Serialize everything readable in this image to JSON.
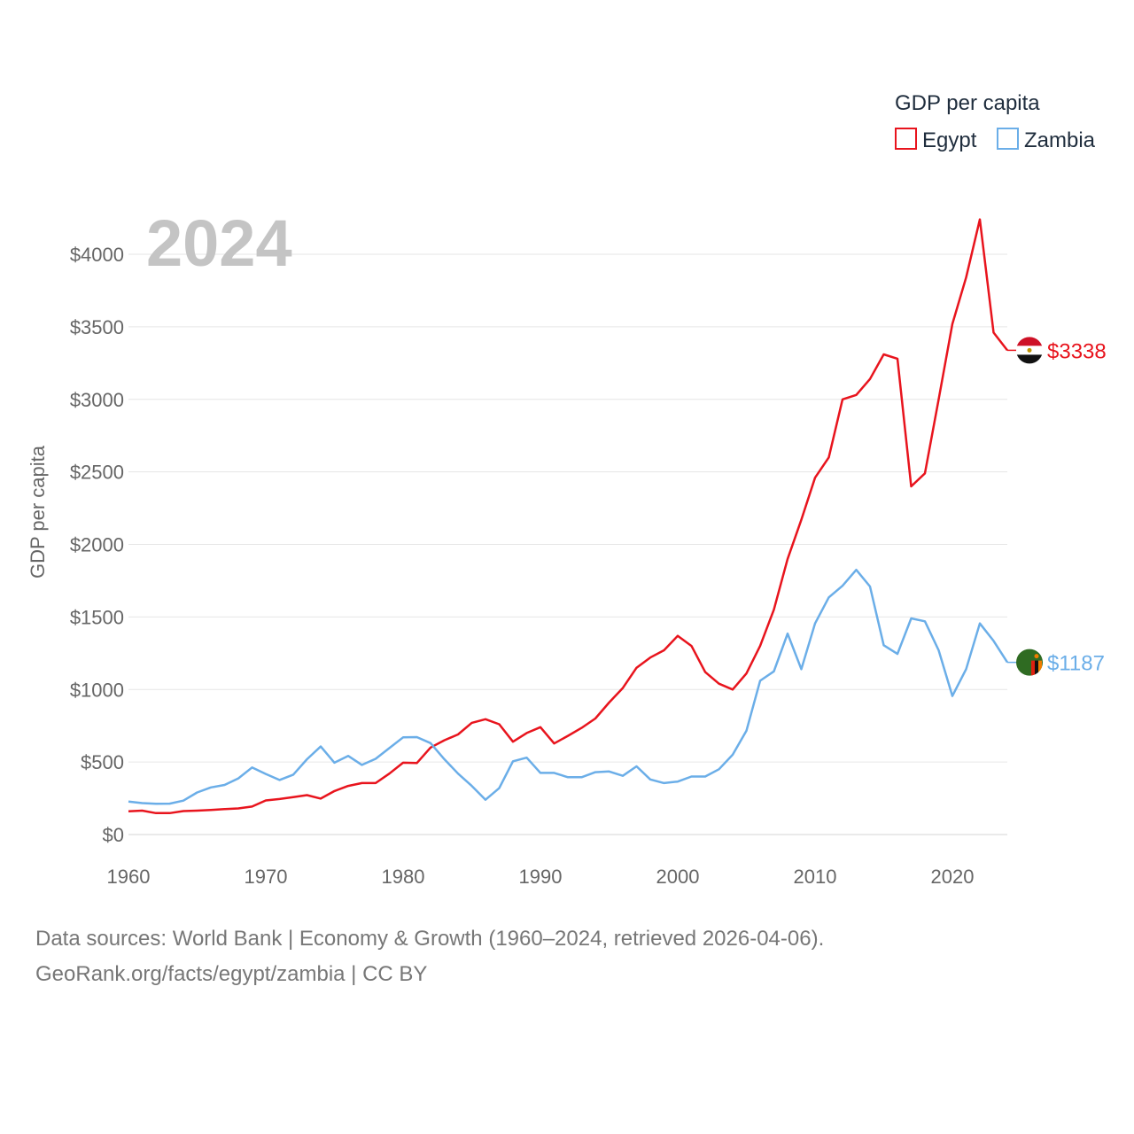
{
  "chart_data": {
    "type": "line",
    "title": "GDP per capita",
    "year_label": "2024",
    "ylabel": "GDP per capita",
    "xlabel": "",
    "xlim": [
      1960,
      2024
    ],
    "ylim": [
      0,
      4300
    ],
    "x_ticks": [
      1960,
      1970,
      1980,
      1990,
      2000,
      2010,
      2020
    ],
    "x_tick_labels": [
      "1960",
      "1970",
      "1980",
      "1990",
      "2000",
      "2010",
      "2020"
    ],
    "y_ticks": [
      0,
      500,
      1000,
      1500,
      2000,
      2500,
      3000,
      3500,
      4000
    ],
    "y_tick_labels": [
      "$0",
      "$500",
      "$1000",
      "$1500",
      "$2000",
      "$2500",
      "$3000",
      "$3500",
      "$4000"
    ],
    "grid": true,
    "legend_position": "top-right",
    "x": [
      1960,
      1961,
      1962,
      1963,
      1964,
      1965,
      1966,
      1967,
      1968,
      1969,
      1970,
      1971,
      1972,
      1973,
      1974,
      1975,
      1976,
      1977,
      1978,
      1979,
      1980,
      1981,
      1982,
      1983,
      1984,
      1985,
      1986,
      1987,
      1988,
      1989,
      1990,
      1991,
      1992,
      1993,
      1994,
      1995,
      1996,
      1997,
      1998,
      1999,
      2000,
      2001,
      2002,
      2003,
      2004,
      2005,
      2006,
      2007,
      2008,
      2009,
      2010,
      2011,
      2012,
      2013,
      2014,
      2015,
      2016,
      2017,
      2018,
      2019,
      2020,
      2021,
      2022,
      2023,
      2024
    ],
    "series": [
      {
        "name": "Egypt",
        "color": "#e8141d",
        "end_label": "$3338",
        "flag": "egypt-flag",
        "values": [
          160,
          165,
          148,
          148,
          162,
          165,
          170,
          175,
          180,
          193,
          235,
          245,
          258,
          272,
          248,
          300,
          335,
          355,
          355,
          420,
          495,
          493,
          600,
          650,
          690,
          770,
          795,
          760,
          640,
          700,
          740,
          628,
          680,
          735,
          800,
          910,
          1010,
          1150,
          1220,
          1270,
          1370,
          1300,
          1120,
          1040,
          1000,
          1110,
          1300,
          1550,
          1900,
          2170,
          2460,
          2600,
          3000,
          3030,
          3140,
          3310,
          3280,
          2400,
          2490,
          3000,
          3520,
          3840,
          4240,
          3460,
          3338
        ]
      },
      {
        "name": "Zambia",
        "color": "#6baee8",
        "end_label": "$1187",
        "flag": "zambia-flag",
        "values": [
          228,
          217,
          212,
          213,
          234,
          290,
          325,
          342,
          387,
          462,
          418,
          376,
          413,
          519,
          607,
          495,
          542,
          480,
          522,
          596,
          670,
          672,
          630,
          520,
          420,
          335,
          240,
          320,
          505,
          530,
          425,
          425,
          395,
          395,
          430,
          435,
          405,
          470,
          380,
          355,
          365,
          400,
          400,
          450,
          550,
          715,
          1060,
          1125,
          1385,
          1140,
          1455,
          1635,
          1715,
          1825,
          1710,
          1305,
          1245,
          1490,
          1470,
          1270,
          955,
          1140,
          1455,
          1335,
          1187
        ]
      }
    ]
  },
  "legend": {
    "title": "GDP per capita",
    "items": [
      "Egypt",
      "Zambia"
    ]
  },
  "footer": {
    "line1": "Data sources: World Bank | Economy & Growth (1960–2024, retrieved 2026-04-06).",
    "line2": "GeoRank.org/facts/egypt/zambia | CC BY"
  }
}
